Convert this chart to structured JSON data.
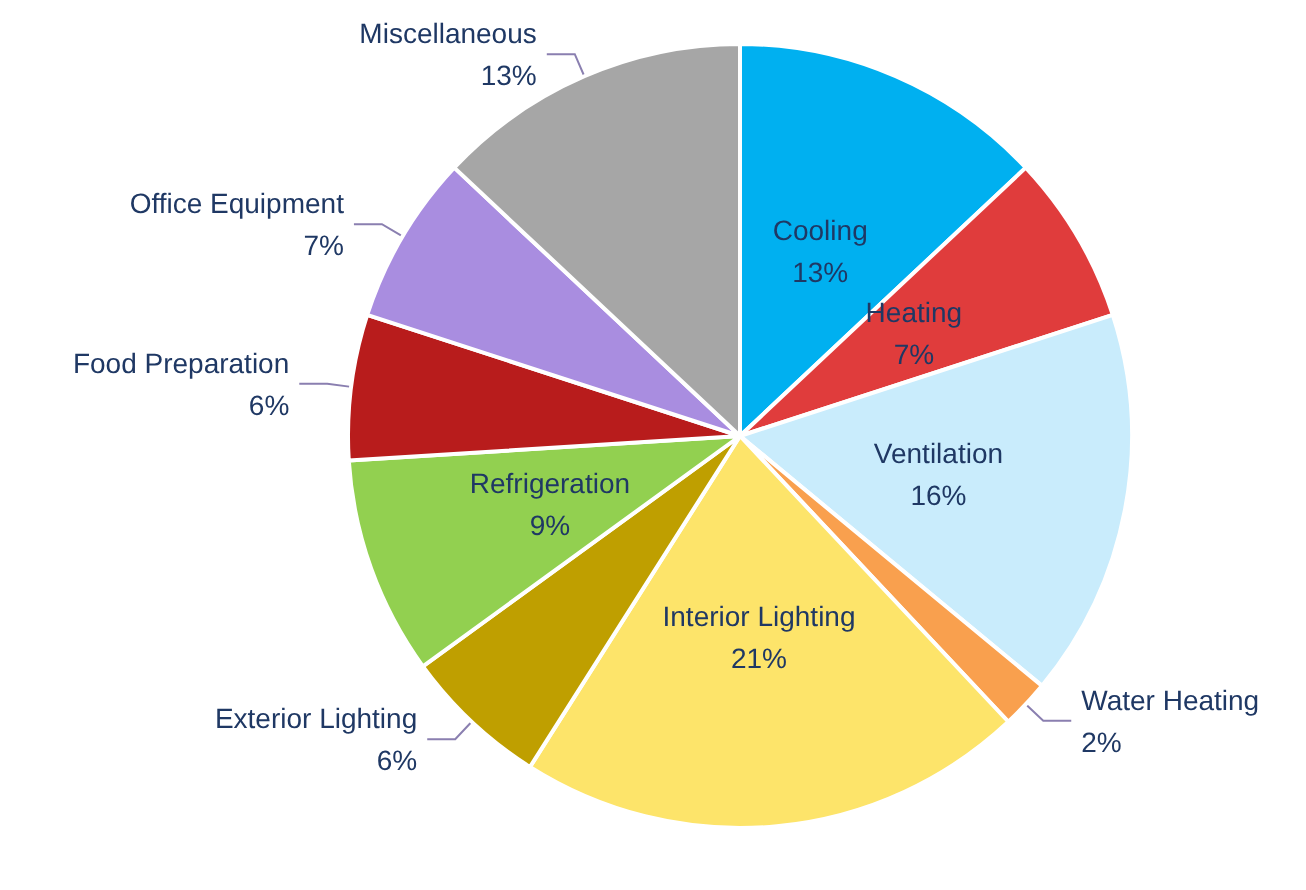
{
  "chart_data": {
    "type": "pie",
    "categories": [
      "Cooling",
      "Heating",
      "Ventilation",
      "Water Heating",
      "Interior Lighting",
      "Exterior Lighting",
      "Refrigeration",
      "Food Preparation",
      "Office Equipment",
      "Miscellaneous"
    ],
    "values": [
      13,
      7,
      16,
      2,
      21,
      6,
      9,
      6,
      7,
      13
    ],
    "value_labels": [
      "13%",
      "7%",
      "16%",
      "2%",
      "21%",
      "6%",
      "9%",
      "6%",
      "7%",
      "13%"
    ],
    "colors": [
      "#00b0f0",
      "#e03c3c",
      "#c9ecfc",
      "#f9a04e",
      "#fde46a",
      "#bf9f00",
      "#92d050",
      "#b81c1c",
      "#a98de0",
      "#a6a6a6"
    ],
    "legend": false
  }
}
